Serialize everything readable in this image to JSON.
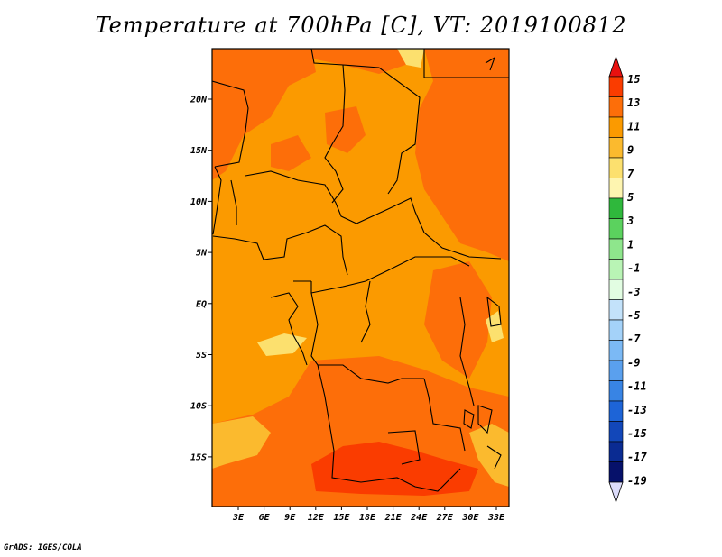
{
  "title": "Temperature at 700hPa [C], VT: 2019100812",
  "credit": "GrADS: IGES/COLA",
  "map": {
    "lat_labels": [
      "20N",
      "15N",
      "10N",
      "5N",
      "EQ",
      "5S",
      "10S",
      "15S"
    ],
    "lon_labels": [
      "3E",
      "6E",
      "9E",
      "12E",
      "15E",
      "18E",
      "21E",
      "24E",
      "27E",
      "30E",
      "33E"
    ]
  },
  "colorbar": {
    "labels": [
      "15",
      "13",
      "11",
      "9",
      "7",
      "5",
      "3",
      "1",
      "-1",
      "-3",
      "-5",
      "-7",
      "-9",
      "-11",
      "-13",
      "-15",
      "-17",
      "-19"
    ],
    "colors": [
      "#e8110f",
      "#fa3c00",
      "#fd6e09",
      "#fb9a00",
      "#fbba2e",
      "#fce06e",
      "#fef5b0",
      "#2fb83c",
      "#5bd25e",
      "#8ee68c",
      "#b9f4b5",
      "#e2fde2",
      "#c3e2fa",
      "#a4d2f9",
      "#7bb9f5",
      "#5aa0ee",
      "#3884e4",
      "#1d64d7",
      "#1247b9",
      "#0a2b92",
      "#06116a",
      "#dcdcfa"
    ]
  },
  "colors": {
    "base_field": "#fb9a00",
    "warm_field": "#fd6e09",
    "hot_field": "#fa3c00",
    "cool_field": "#fbba2e",
    "coolest_field": "#fce06e"
  }
}
